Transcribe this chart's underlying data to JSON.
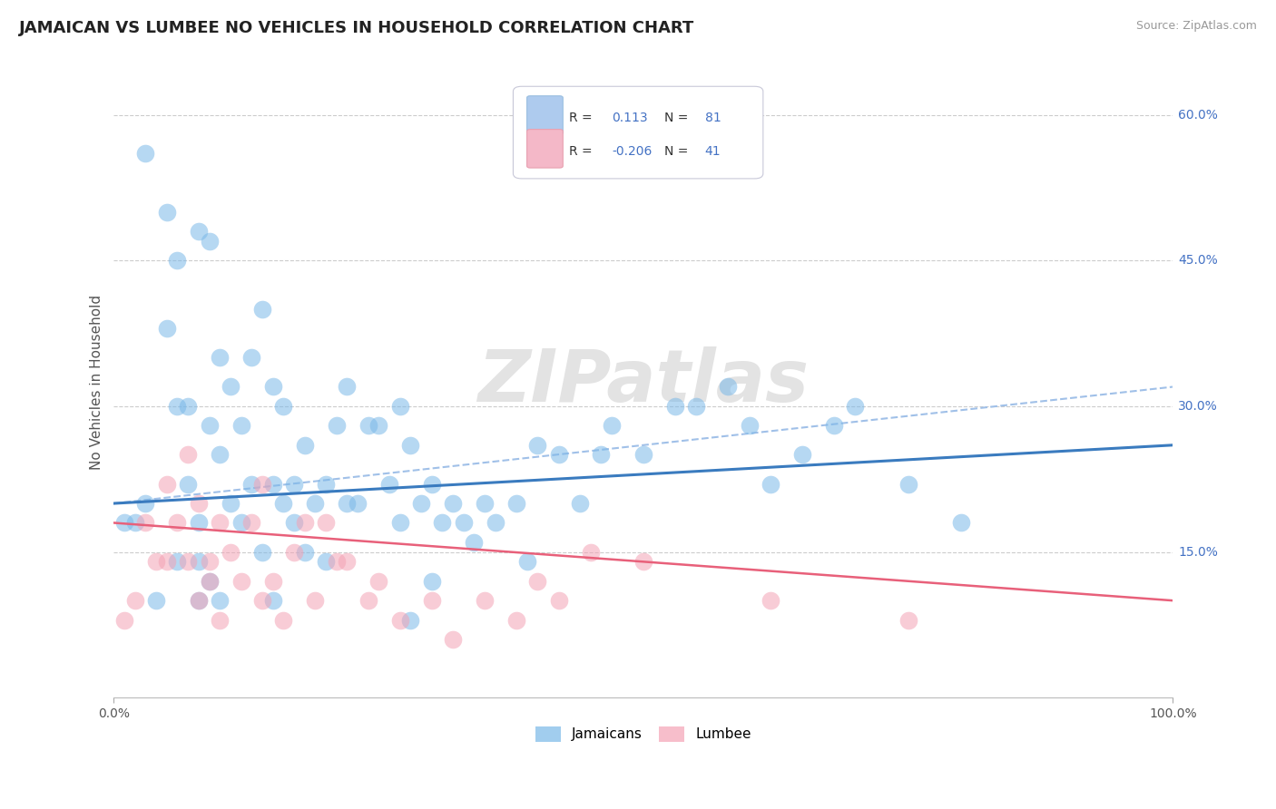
{
  "title": "JAMAICAN VS LUMBEE NO VEHICLES IN HOUSEHOLD CORRELATION CHART",
  "source": "Source: ZipAtlas.com",
  "ylabel": "No Vehicles in Household",
  "xlim": [
    0,
    100
  ],
  "ylim": [
    0,
    65
  ],
  "ytick_vals": [
    0,
    15,
    30,
    45,
    60
  ],
  "ytick_labels": [
    "",
    "15.0%",
    "30.0%",
    "45.0%",
    "60.0%"
  ],
  "xtick_vals": [
    0,
    100
  ],
  "xtick_labels": [
    "0.0%",
    "100.0%"
  ],
  "jamaican_color": "#7ab8e8",
  "lumbee_color": "#f4a3b5",
  "jamaican_line_color": "#3a7bbf",
  "lumbee_line_color": "#e8607a",
  "dashed_line_color": "#a0c0e8",
  "background_color": "#ffffff",
  "grid_color": "#cccccc",
  "ytick_color": "#4472c4",
  "watermark": "ZIPatlas",
  "title_fontsize": 13,
  "axis_fontsize": 11,
  "tick_fontsize": 10,
  "legend_box_color": "#e8e8f0",
  "legend_r1_color": "#aecbee",
  "legend_r2_color": "#f4b8c8",
  "jamaican_line_y0": 20,
  "jamaican_line_y1": 26,
  "dashed_line_y0": 20,
  "dashed_line_y1": 32,
  "lumbee_line_y0": 18,
  "lumbee_line_y1": 10,
  "jamaican_x": [
    1,
    2,
    3,
    3,
    4,
    5,
    5,
    6,
    6,
    6,
    7,
    7,
    8,
    8,
    8,
    8,
    9,
    9,
    9,
    10,
    10,
    10,
    11,
    11,
    12,
    12,
    13,
    13,
    14,
    14,
    15,
    15,
    15,
    16,
    16,
    17,
    17,
    18,
    18,
    19,
    20,
    20,
    21,
    22,
    22,
    23,
    24,
    25,
    26,
    27,
    27,
    28,
    28,
    29,
    30,
    30,
    31,
    32,
    33,
    34,
    35,
    36,
    38,
    39,
    40,
    42,
    44,
    46,
    47,
    50,
    53,
    55,
    58,
    60,
    62,
    65,
    68,
    70,
    75,
    80
  ],
  "jamaican_y": [
    18,
    18,
    56,
    20,
    10,
    50,
    38,
    45,
    14,
    30,
    30,
    22,
    14,
    18,
    48,
    10,
    47,
    28,
    12,
    35,
    25,
    10,
    32,
    20,
    28,
    18,
    35,
    22,
    40,
    15,
    32,
    22,
    10,
    30,
    20,
    22,
    18,
    26,
    15,
    20,
    22,
    14,
    28,
    32,
    20,
    20,
    28,
    28,
    22,
    30,
    18,
    26,
    8,
    20,
    22,
    12,
    18,
    20,
    18,
    16,
    20,
    18,
    20,
    14,
    26,
    25,
    20,
    25,
    28,
    25,
    30,
    30,
    32,
    28,
    22,
    25,
    28,
    30,
    22,
    18
  ],
  "lumbee_x": [
    1,
    2,
    3,
    4,
    5,
    5,
    6,
    7,
    7,
    8,
    8,
    9,
    9,
    10,
    10,
    11,
    12,
    13,
    14,
    14,
    15,
    16,
    17,
    18,
    19,
    20,
    21,
    22,
    24,
    25,
    27,
    30,
    32,
    35,
    38,
    40,
    42,
    45,
    50,
    62,
    75
  ],
  "lumbee_y": [
    8,
    10,
    18,
    14,
    22,
    14,
    18,
    25,
    14,
    10,
    20,
    14,
    12,
    18,
    8,
    15,
    12,
    18,
    22,
    10,
    12,
    8,
    15,
    18,
    10,
    18,
    14,
    14,
    10,
    12,
    8,
    10,
    6,
    10,
    8,
    12,
    10,
    15,
    14,
    10,
    8
  ]
}
